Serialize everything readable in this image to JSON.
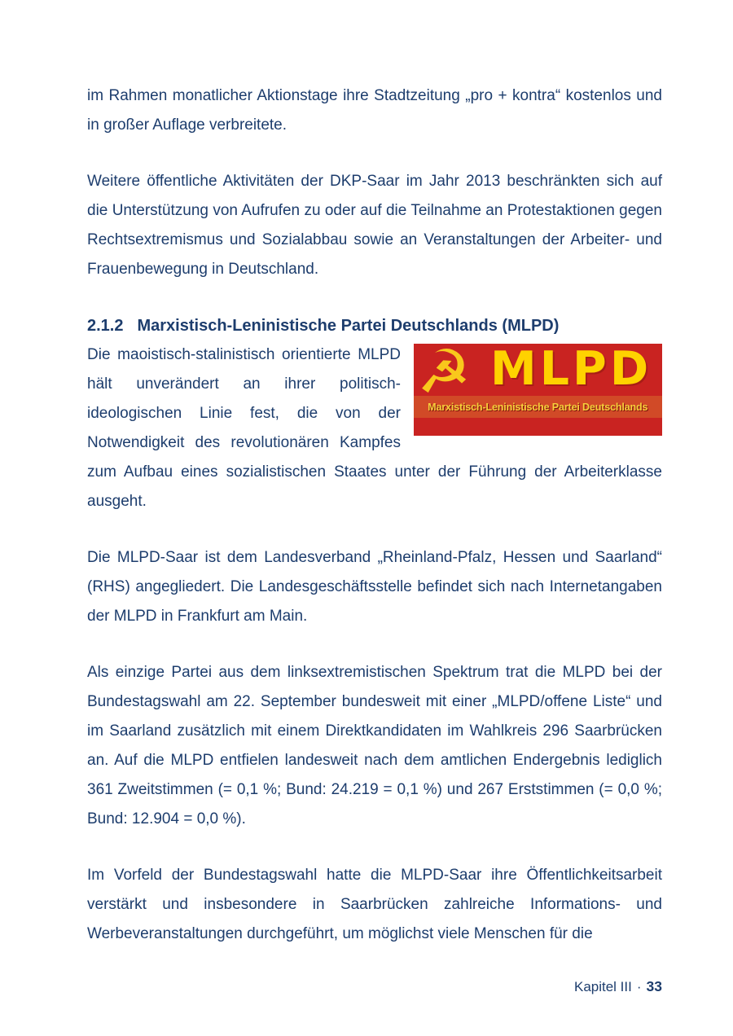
{
  "document": {
    "paragraphs": [
      "im Rahmen monatlicher Aktionstage ihre Stadtzeitung „pro + kontra“ kostenlos und in großer Auflage verbreitete.",
      "Weitere öffentliche Aktivitäten der DKP-Saar im Jahr 2013 beschränkten sich auf die Unterstützung von Aufrufen zu oder auf die Teilnahme an Protestaktionen gegen Rechtsextremismus und Sozialabbau sowie an Veranstaltungen der Arbeiter- und Frauenbewegung in Deutschland.",
      "Die maoistisch-stalinistisch orientierte MLPD hält unverändert an ihrer politisch-ideologischen Linie fest, die von der Notwendigkeit des revolutionären Kampfes zum Aufbau eines sozialistischen Staates unter der Führung der Arbeiterklasse ausgeht.",
      "Die MLPD-Saar ist dem Landesverband „Rheinland-Pfalz, Hessen und Saarland“ (RHS) angegliedert. Die Landesgeschäftsstelle befindet sich nach Internetangaben der MLPD in Frankfurt am Main.",
      "Als einzige Partei aus dem linksextremistischen Spektrum trat die MLPD bei der Bundestagswahl am 22. September bundesweit mit einer „MLPD/offene Liste“ und im Saarland zusätzlich mit einem Direktkandidaten im Wahlkreis 296 Saarbrücken an. Auf die MLPD entfielen landesweit nach dem amtlichen Endergebnis lediglich 361 Zweitstimmen (= 0,1 %; Bund: 24.219 = 0,1 %) und 267 Erststimmen (= 0,0 %; Bund: 12.904 = 0,0 %).",
      "Im Vorfeld der Bundestagswahl hatte die MLPD-Saar ihre Öffentlichkeitsarbeit verstärkt und insbesondere in Saarbrücken zahlreiche Informations- und Werbeveranstaltungen durchgeführt, um möglichst viele Menschen für die"
    ],
    "section": {
      "number": "2.1.2",
      "title": "Marxistisch-Leninistische Partei Deutschlands (MLPD)"
    },
    "logo": {
      "title": "MLPD",
      "subtitle": "Marxistisch-Leninistische Partei Deutschlands",
      "icon": "hammer-and-sickle",
      "icon_glyph": "☭",
      "background_color": "#c92321",
      "accent_color": "#ffd200"
    }
  },
  "footer": {
    "chapter": "Kapitel III",
    "separator": "·",
    "page_number": "33"
  }
}
